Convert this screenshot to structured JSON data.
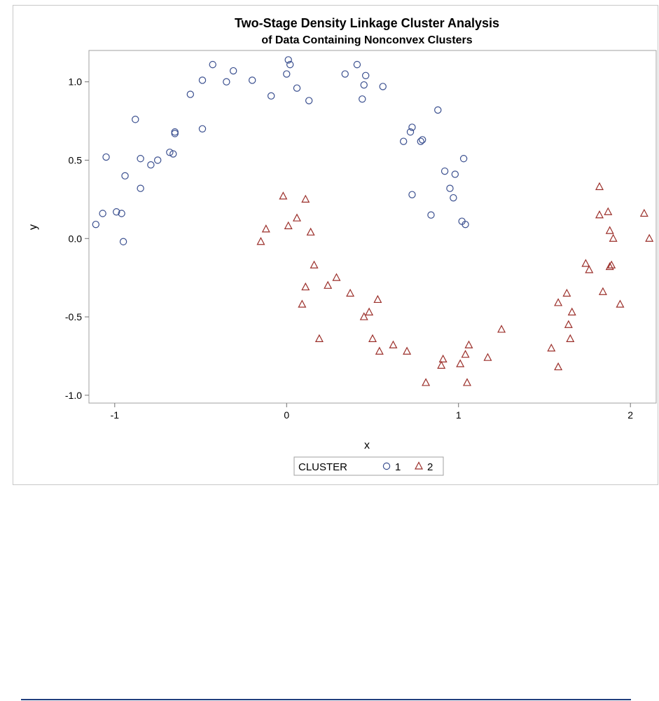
{
  "chart_data": {
    "type": "scatter",
    "title": "Two-Stage Density Linkage Cluster Analysis",
    "subtitle": "of Data Containing Nonconvex Clusters",
    "xlabel": "x",
    "ylabel": "y",
    "xlim": [
      -1.15,
      2.15
    ],
    "ylim": [
      -1.05,
      1.2
    ],
    "xticks": [
      -1,
      0,
      1,
      2
    ],
    "yticks": [
      -1.0,
      -0.5,
      0.0,
      0.5,
      1.0
    ],
    "xtick_labels": [
      "-1",
      "0",
      "1",
      "2"
    ],
    "ytick_labels": [
      "-1.0",
      "-0.5",
      "0.0",
      "0.5",
      "1.0"
    ],
    "grid": false,
    "legend": {
      "title": "CLUSTER",
      "position": "bottom-center"
    },
    "series": [
      {
        "name": "1",
        "marker": "circle",
        "color": "#3a4f8f",
        "points": [
          [
            -1.11,
            0.09
          ],
          [
            -1.07,
            0.16
          ],
          [
            -1.05,
            0.52
          ],
          [
            -0.99,
            0.17
          ],
          [
            -0.96,
            0.16
          ],
          [
            -0.95,
            -0.02
          ],
          [
            -0.94,
            0.4
          ],
          [
            -0.88,
            0.76
          ],
          [
            -0.85,
            0.51
          ],
          [
            -0.85,
            0.32
          ],
          [
            -0.79,
            0.47
          ],
          [
            -0.75,
            0.5
          ],
          [
            -0.68,
            0.55
          ],
          [
            -0.66,
            0.54
          ],
          [
            -0.65,
            0.67
          ],
          [
            -0.65,
            0.68
          ],
          [
            -0.56,
            0.92
          ],
          [
            -0.49,
            1.01
          ],
          [
            -0.49,
            0.7
          ],
          [
            -0.43,
            1.11
          ],
          [
            -0.35,
            1.0
          ],
          [
            -0.31,
            1.07
          ],
          [
            -0.2,
            1.01
          ],
          [
            -0.09,
            0.91
          ],
          [
            0.0,
            1.05
          ],
          [
            0.01,
            1.14
          ],
          [
            0.02,
            1.11
          ],
          [
            0.06,
            0.96
          ],
          [
            0.13,
            0.88
          ],
          [
            0.34,
            1.05
          ],
          [
            0.41,
            1.11
          ],
          [
            0.44,
            0.89
          ],
          [
            0.45,
            0.98
          ],
          [
            0.46,
            1.04
          ],
          [
            0.56,
            0.97
          ],
          [
            0.68,
            0.62
          ],
          [
            0.72,
            0.68
          ],
          [
            0.73,
            0.71
          ],
          [
            0.73,
            0.28
          ],
          [
            0.78,
            0.62
          ],
          [
            0.79,
            0.63
          ],
          [
            0.84,
            0.15
          ],
          [
            0.88,
            0.82
          ],
          [
            0.92,
            0.43
          ],
          [
            0.95,
            0.32
          ],
          [
            0.97,
            0.26
          ],
          [
            0.98,
            0.41
          ],
          [
            1.02,
            0.11
          ],
          [
            1.03,
            0.51
          ],
          [
            1.04,
            0.09
          ]
        ]
      },
      {
        "name": "2",
        "marker": "triangle",
        "color": "#9b2f2a",
        "points": [
          [
            -0.15,
            -0.02
          ],
          [
            -0.12,
            0.06
          ],
          [
            -0.02,
            0.27
          ],
          [
            0.01,
            0.08
          ],
          [
            0.06,
            0.13
          ],
          [
            0.09,
            -0.42
          ],
          [
            0.11,
            -0.31
          ],
          [
            0.11,
            0.25
          ],
          [
            0.14,
            0.04
          ],
          [
            0.16,
            -0.17
          ],
          [
            0.19,
            -0.64
          ],
          [
            0.24,
            -0.3
          ],
          [
            0.29,
            -0.25
          ],
          [
            0.37,
            -0.35
          ],
          [
            0.45,
            -0.5
          ],
          [
            0.48,
            -0.47
          ],
          [
            0.5,
            -0.64
          ],
          [
            0.53,
            -0.39
          ],
          [
            0.54,
            -0.72
          ],
          [
            0.62,
            -0.68
          ],
          [
            0.7,
            -0.72
          ],
          [
            0.81,
            -0.92
          ],
          [
            0.9,
            -0.81
          ],
          [
            0.91,
            -0.77
          ],
          [
            1.01,
            -0.8
          ],
          [
            1.04,
            -0.74
          ],
          [
            1.05,
            -0.92
          ],
          [
            1.06,
            -0.68
          ],
          [
            1.17,
            -0.76
          ],
          [
            1.25,
            -0.58
          ],
          [
            1.54,
            -0.7
          ],
          [
            1.58,
            -0.41
          ],
          [
            1.58,
            -0.82
          ],
          [
            1.63,
            -0.35
          ],
          [
            1.64,
            -0.55
          ],
          [
            1.65,
            -0.64
          ],
          [
            1.66,
            -0.47
          ],
          [
            1.74,
            -0.16
          ],
          [
            1.76,
            -0.2
          ],
          [
            1.82,
            0.15
          ],
          [
            1.82,
            0.33
          ],
          [
            1.84,
            -0.34
          ],
          [
            1.87,
            0.17
          ],
          [
            1.88,
            0.05
          ],
          [
            1.88,
            -0.18
          ],
          [
            1.89,
            -0.17
          ],
          [
            1.9,
            0.0
          ],
          [
            1.94,
            -0.42
          ],
          [
            2.08,
            0.16
          ],
          [
            2.11,
            0.0
          ]
        ]
      }
    ]
  }
}
